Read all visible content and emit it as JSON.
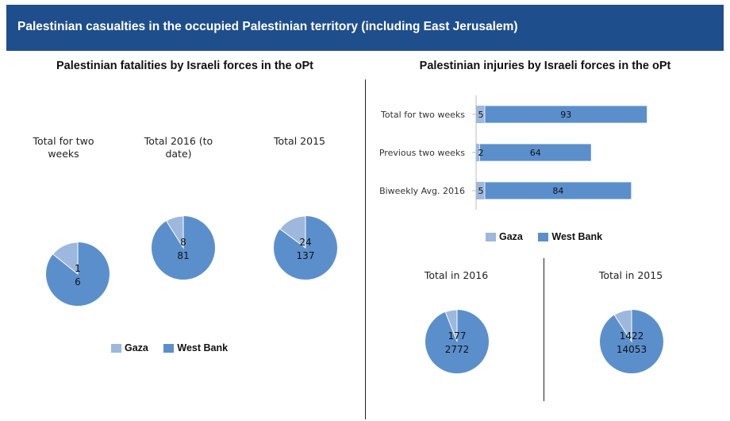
{
  "banner": {
    "title": "Palestinian casualties in the occupied Palestinian territory (including East Jerusalem)"
  },
  "colors": {
    "gaza": "#9db8dc",
    "west_bank": "#5b8fcc",
    "banner": "#1f4e8c"
  },
  "legend": {
    "gaza": "Gaza",
    "west_bank": "West Bank"
  },
  "chart_data": [
    {
      "type": "pie",
      "title": "Palestinian fatalities by Israeli forces in the oPt",
      "pies": [
        {
          "label": "Total for two weeks",
          "slices": [
            {
              "name": "Gaza",
              "value": 1
            },
            {
              "name": "West Bank",
              "value": 6
            }
          ]
        },
        {
          "label": "Total 2016 (to date)",
          "slices": [
            {
              "name": "Gaza",
              "value": 8
            },
            {
              "name": "West Bank",
              "value": 81
            }
          ]
        },
        {
          "label": "Total 2015",
          "slices": [
            {
              "name": "Gaza",
              "value": 24
            },
            {
              "name": "West Bank",
              "value": 137
            }
          ]
        }
      ],
      "legend": [
        "Gaza",
        "West Bank"
      ]
    },
    {
      "type": "bar",
      "title": "Palestinian injuries by Israeli forces in the oPt",
      "orientation": "horizontal",
      "stacked": true,
      "categories": [
        "Total for two weeks",
        "Previous two weeks",
        "Biweekly Avg. 2016"
      ],
      "series": [
        {
          "name": "Gaza",
          "values": [
            5,
            2,
            5
          ]
        },
        {
          "name": "West Bank",
          "values": [
            93,
            64,
            84
          ]
        }
      ],
      "legend": [
        "Gaza",
        "West Bank"
      ]
    },
    {
      "type": "pie",
      "pies": [
        {
          "label": "Total in 2016",
          "slices": [
            {
              "name": "Gaza",
              "value": 177
            },
            {
              "name": "West Bank",
              "value": 2772
            }
          ]
        },
        {
          "label": "Total in 2015",
          "slices": [
            {
              "name": "Gaza",
              "value": 1422
            },
            {
              "name": "West Bank",
              "value": 14053
            }
          ]
        }
      ]
    }
  ]
}
